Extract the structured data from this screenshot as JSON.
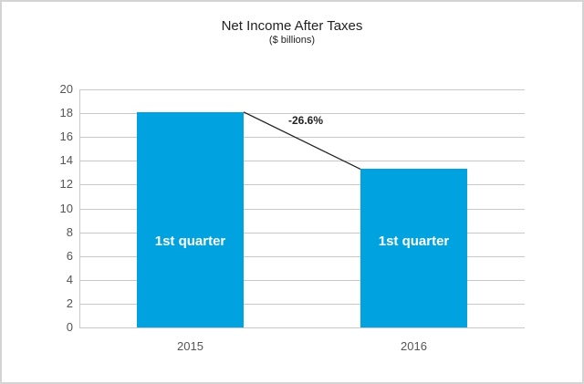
{
  "chart_data": {
    "type": "bar",
    "title": "Net Income After Taxes",
    "subtitle": "($ billions)",
    "xlabel": "",
    "ylabel": "",
    "categories": [
      "2015",
      "2016"
    ],
    "values": [
      18.1,
      13.3
    ],
    "bar_labels": [
      "1st quarter",
      "1st quarter"
    ],
    "ylim": [
      0,
      20
    ],
    "yticks": [
      0,
      2,
      4,
      6,
      8,
      10,
      12,
      14,
      16,
      18,
      20
    ],
    "grid": true,
    "legend": null,
    "annotations": [
      {
        "text": "-26.6%",
        "type": "connector-line",
        "from": "2015",
        "to": "2016"
      }
    ],
    "colors": {
      "bar": "#00a3e0",
      "line": "#222222"
    }
  }
}
